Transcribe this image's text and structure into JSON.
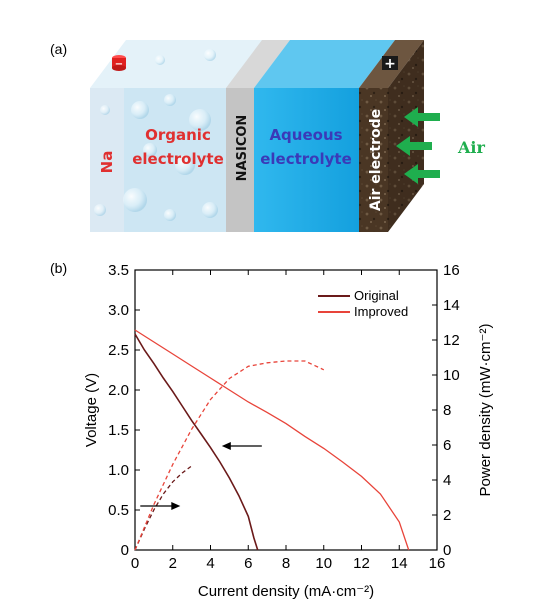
{
  "panels": {
    "a": {
      "label": "(a)",
      "cells": {
        "sodium": "Na",
        "organic_line1": "Organic",
        "organic_line2": "electrolyte",
        "separator": "NASICON",
        "aqueous_line1": "Aqueous",
        "aqueous_line2": "electrolyte",
        "air_electrode": "Air electrode",
        "air_label": "Air",
        "positive_terminal": "+",
        "negative_terminal": "−"
      },
      "colors": {
        "sodium": "#dbe9f3",
        "organic": "#cde6f3",
        "nasicon": "#c4c4c4",
        "aqueous": "#1aaae6",
        "air_electrode": "#4f3a26",
        "arrow": "#1fae4e",
        "label_red": "#e03030",
        "label_blue": "#3a3ab8"
      }
    },
    "b": {
      "label": "(b)"
    }
  },
  "chart_data": {
    "type": "line",
    "xlabel": "Current density (mA·cm⁻²)",
    "ylabel_left": "Voltage (V)",
    "ylabel_right": "Power density (mW·cm⁻²)",
    "xlim": [
      0,
      16
    ],
    "ylim_left": [
      0,
      3.5
    ],
    "ylim_right": [
      0,
      16
    ],
    "x_ticks": [
      "0",
      "2",
      "4",
      "6",
      "8",
      "10",
      "12",
      "14",
      "16"
    ],
    "y_left_ticks": [
      "0",
      "0.5",
      "1.0",
      "1.5",
      "2.0",
      "2.5",
      "3.0",
      "3.5"
    ],
    "y_right_ticks": [
      "0",
      "2",
      "4",
      "6",
      "8",
      "10",
      "12",
      "14",
      "16"
    ],
    "legend": {
      "position": "top-right",
      "entries": [
        "Original",
        "Improved"
      ]
    },
    "series": [
      {
        "name": "Original",
        "kind": "voltage",
        "axis": "left",
        "style": "solid",
        "color": "#6b1a1a",
        "x": [
          0,
          0.5,
          1,
          1.5,
          2,
          2.5,
          3,
          3.5,
          4,
          4.5,
          5,
          5.5,
          6,
          6.3,
          6.5
        ],
        "y": [
          2.7,
          2.5,
          2.33,
          2.15,
          1.98,
          1.8,
          1.62,
          1.45,
          1.28,
          1.1,
          0.9,
          0.68,
          0.42,
          0.15,
          0.0
        ]
      },
      {
        "name": "Improved",
        "kind": "voltage",
        "axis": "left",
        "style": "solid",
        "color": "#e8443a",
        "x": [
          0,
          1,
          2,
          3,
          4,
          5,
          6,
          7,
          8,
          9,
          10,
          11,
          12,
          13,
          14,
          14.5
        ],
        "y": [
          2.75,
          2.6,
          2.45,
          2.3,
          2.15,
          2.0,
          1.85,
          1.72,
          1.58,
          1.42,
          1.27,
          1.1,
          0.92,
          0.7,
          0.35,
          0.0
        ]
      },
      {
        "name": "Original",
        "kind": "power",
        "axis": "right",
        "style": "dashed",
        "color": "#6b1a1a",
        "x": [
          0,
          0.5,
          1,
          1.5,
          2,
          2.5,
          3
        ],
        "y": [
          0,
          1.2,
          2.3,
          3.2,
          3.9,
          4.4,
          4.8
        ]
      },
      {
        "name": "Improved",
        "kind": "power",
        "axis": "right",
        "style": "dashed",
        "color": "#e8443a",
        "x": [
          0,
          1,
          2,
          3,
          4,
          5,
          6,
          7,
          8,
          9,
          10
        ],
        "y": [
          0,
          2.6,
          4.9,
          6.9,
          8.6,
          9.8,
          10.5,
          10.7,
          10.8,
          10.8,
          10.3
        ]
      }
    ],
    "annotations": [
      {
        "type": "arrow",
        "direction": "left",
        "points_to": "voltage curves",
        "at_x": 4.6,
        "at_y_left": 1.3
      },
      {
        "type": "arrow",
        "direction": "right",
        "points_to": "power curves",
        "at_x": 2.4,
        "at_y_left": 0.55
      }
    ]
  }
}
